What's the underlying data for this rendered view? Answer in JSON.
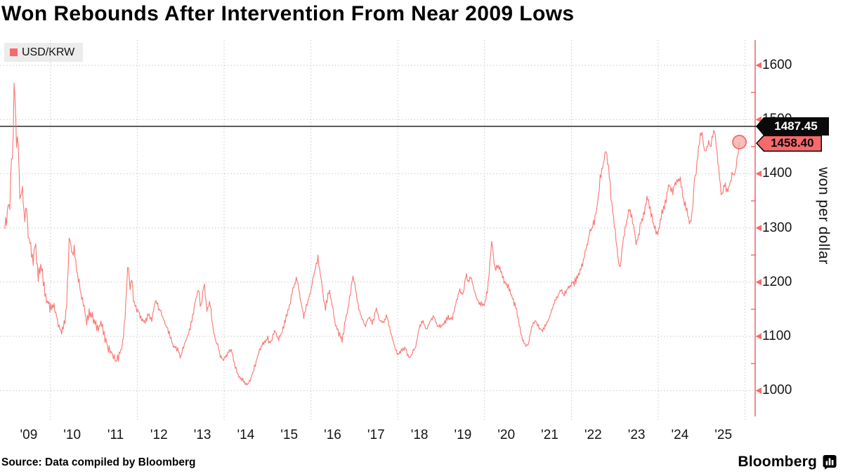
{
  "title": "Won Rebounds After Intervention From Near 2009 Lows",
  "legend": {
    "label": "USD/KRW",
    "swatch": "legend-swatch-red"
  },
  "source": "Source: Data compiled by Bloomberg",
  "branding": {
    "wordmark": "Bloomberg",
    "icon": "bloomberg-bars-icon"
  },
  "axis": {
    "y_label": "won per dollar",
    "y_ticks": [
      1000,
      1100,
      1200,
      1300,
      1400,
      1500,
      1600
    ],
    "y_minor_ticks": [
      1050,
      1150,
      1250,
      1350,
      1450,
      1550
    ],
    "x_labels": [
      "'09",
      "'10",
      "'11",
      "'12",
      "'13",
      "'14",
      "'15",
      "'16",
      "'17",
      "'18",
      "'19",
      "'20",
      "'21",
      "'22",
      "'23",
      "'24",
      "'25"
    ],
    "x_gridline_years": [
      2010,
      2012,
      2014,
      2016,
      2018,
      2020,
      2022,
      2024,
      2026
    ]
  },
  "annotations": {
    "ref_line_value": 1487.45,
    "ref_line_label": "1487.45",
    "last_value": 1458.4,
    "last_label": "1458.40"
  },
  "colors": {
    "accent": "#f8696b",
    "line": "#f87b76",
    "marker_fill": "#f5a8a4",
    "grid": "#c7c7c7",
    "ref_line": "#111111"
  },
  "chart_data": {
    "type": "line",
    "title": "Won Rebounds After Intervention From Near 2009 Lows",
    "xlabel": "",
    "ylabel": "won per dollar",
    "ylim": [
      955,
      1645
    ],
    "x_range": [
      2008.95,
      2026.1
    ],
    "grid": "dashed",
    "legend_position": "top-left",
    "ref_line": 1487.45,
    "last_point": {
      "x": 2025.87,
      "value": 1458.4
    },
    "series": [
      {
        "name": "USD/KRW",
        "points": [
          [
            2008.95,
            1308
          ],
          [
            2009.0,
            1315
          ],
          [
            2009.03,
            1355
          ],
          [
            2009.06,
            1322
          ],
          [
            2009.1,
            1440
          ],
          [
            2009.13,
            1415
          ],
          [
            2009.17,
            1593
          ],
          [
            2009.2,
            1490
          ],
          [
            2009.22,
            1448
          ],
          [
            2009.25,
            1472
          ],
          [
            2009.3,
            1348
          ],
          [
            2009.35,
            1374
          ],
          [
            2009.4,
            1318
          ],
          [
            2009.45,
            1342
          ],
          [
            2009.5,
            1279
          ],
          [
            2009.55,
            1262
          ],
          [
            2009.6,
            1240
          ],
          [
            2009.65,
            1268
          ],
          [
            2009.72,
            1205
          ],
          [
            2009.78,
            1233
          ],
          [
            2009.85,
            1195
          ],
          [
            2009.92,
            1168
          ],
          [
            2010.0,
            1150
          ],
          [
            2010.08,
            1162
          ],
          [
            2010.15,
            1135
          ],
          [
            2010.25,
            1108
          ],
          [
            2010.33,
            1128
          ],
          [
            2010.38,
            1170
          ],
          [
            2010.44,
            1293
          ],
          [
            2010.5,
            1248
          ],
          [
            2010.55,
            1268
          ],
          [
            2010.6,
            1225
          ],
          [
            2010.67,
            1192
          ],
          [
            2010.75,
            1160
          ],
          [
            2010.83,
            1130
          ],
          [
            2010.92,
            1146
          ],
          [
            2011.0,
            1128
          ],
          [
            2011.08,
            1115
          ],
          [
            2011.17,
            1126
          ],
          [
            2011.25,
            1096
          ],
          [
            2011.33,
            1080
          ],
          [
            2011.42,
            1068
          ],
          [
            2011.5,
            1054
          ],
          [
            2011.58,
            1063
          ],
          [
            2011.67,
            1088
          ],
          [
            2011.73,
            1150
          ],
          [
            2011.79,
            1238
          ],
          [
            2011.83,
            1182
          ],
          [
            2011.87,
            1215
          ],
          [
            2011.92,
            1158
          ],
          [
            2012.0,
            1150
          ],
          [
            2012.08,
            1136
          ],
          [
            2012.17,
            1124
          ],
          [
            2012.25,
            1140
          ],
          [
            2012.33,
            1130
          ],
          [
            2012.42,
            1166
          ],
          [
            2012.5,
            1152
          ],
          [
            2012.58,
            1138
          ],
          [
            2012.67,
            1118
          ],
          [
            2012.75,
            1103
          ],
          [
            2012.83,
            1082
          ],
          [
            2012.92,
            1076
          ],
          [
            2013.0,
            1062
          ],
          [
            2013.08,
            1084
          ],
          [
            2013.17,
            1102
          ],
          [
            2013.25,
            1126
          ],
          [
            2013.33,
            1162
          ],
          [
            2013.42,
            1188
          ],
          [
            2013.46,
            1150
          ],
          [
            2013.54,
            1200
          ],
          [
            2013.6,
            1148
          ],
          [
            2013.67,
            1165
          ],
          [
            2013.75,
            1110
          ],
          [
            2013.83,
            1086
          ],
          [
            2013.92,
            1064
          ],
          [
            2014.0,
            1056
          ],
          [
            2014.08,
            1070
          ],
          [
            2014.17,
            1076
          ],
          [
            2014.25,
            1045
          ],
          [
            2014.33,
            1028
          ],
          [
            2014.42,
            1020
          ],
          [
            2014.54,
            1010
          ],
          [
            2014.6,
            1018
          ],
          [
            2014.67,
            1036
          ],
          [
            2014.75,
            1056
          ],
          [
            2014.83,
            1078
          ],
          [
            2014.92,
            1088
          ],
          [
            2015.0,
            1096
          ],
          [
            2015.08,
            1086
          ],
          [
            2015.17,
            1112
          ],
          [
            2015.25,
            1092
          ],
          [
            2015.33,
            1106
          ],
          [
            2015.42,
            1132
          ],
          [
            2015.5,
            1152
          ],
          [
            2015.58,
            1186
          ],
          [
            2015.67,
            1208
          ],
          [
            2015.72,
            1188
          ],
          [
            2015.76,
            1168
          ],
          [
            2015.83,
            1136
          ],
          [
            2015.92,
            1162
          ],
          [
            2016.0,
            1186
          ],
          [
            2016.08,
            1216
          ],
          [
            2016.16,
            1245
          ],
          [
            2016.25,
            1196
          ],
          [
            2016.33,
            1152
          ],
          [
            2016.42,
            1183
          ],
          [
            2016.5,
            1158
          ],
          [
            2016.56,
            1122
          ],
          [
            2016.63,
            1108
          ],
          [
            2016.72,
            1092
          ],
          [
            2016.8,
            1132
          ],
          [
            2016.88,
            1162
          ],
          [
            2016.96,
            1208
          ],
          [
            2017.0,
            1202
          ],
          [
            2017.08,
            1160
          ],
          [
            2017.17,
            1132
          ],
          [
            2017.25,
            1120
          ],
          [
            2017.33,
            1136
          ],
          [
            2017.42,
            1124
          ],
          [
            2017.5,
            1150
          ],
          [
            2017.58,
            1130
          ],
          [
            2017.67,
            1124
          ],
          [
            2017.75,
            1140
          ],
          [
            2017.83,
            1108
          ],
          [
            2017.92,
            1084
          ],
          [
            2018.0,
            1064
          ],
          [
            2018.08,
            1073
          ],
          [
            2018.17,
            1079
          ],
          [
            2018.27,
            1058
          ],
          [
            2018.33,
            1068
          ],
          [
            2018.42,
            1082
          ],
          [
            2018.5,
            1118
          ],
          [
            2018.58,
            1128
          ],
          [
            2018.67,
            1112
          ],
          [
            2018.75,
            1128
          ],
          [
            2018.83,
            1136
          ],
          [
            2018.92,
            1120
          ],
          [
            2019.0,
            1118
          ],
          [
            2019.08,
            1126
          ],
          [
            2019.17,
            1136
          ],
          [
            2019.25,
            1130
          ],
          [
            2019.33,
            1160
          ],
          [
            2019.42,
            1186
          ],
          [
            2019.5,
            1176
          ],
          [
            2019.58,
            1215
          ],
          [
            2019.63,
            1198
          ],
          [
            2019.67,
            1211
          ],
          [
            2019.75,
            1190
          ],
          [
            2019.83,
            1166
          ],
          [
            2019.92,
            1160
          ],
          [
            2020.0,
            1158
          ],
          [
            2020.08,
            1192
          ],
          [
            2020.17,
            1284
          ],
          [
            2020.21,
            1238
          ],
          [
            2020.25,
            1222
          ],
          [
            2020.33,
            1230
          ],
          [
            2020.42,
            1206
          ],
          [
            2020.5,
            1196
          ],
          [
            2020.58,
            1186
          ],
          [
            2020.67,
            1164
          ],
          [
            2020.75,
            1144
          ],
          [
            2020.83,
            1108
          ],
          [
            2020.92,
            1088
          ],
          [
            2021.0,
            1082
          ],
          [
            2021.08,
            1114
          ],
          [
            2021.17,
            1130
          ],
          [
            2021.25,
            1117
          ],
          [
            2021.33,
            1110
          ],
          [
            2021.42,
            1122
          ],
          [
            2021.5,
            1136
          ],
          [
            2021.58,
            1156
          ],
          [
            2021.67,
            1172
          ],
          [
            2021.75,
            1186
          ],
          [
            2021.83,
            1177
          ],
          [
            2021.92,
            1188
          ],
          [
            2022.0,
            1196
          ],
          [
            2022.08,
            1200
          ],
          [
            2022.17,
            1216
          ],
          [
            2022.25,
            1232
          ],
          [
            2022.33,
            1256
          ],
          [
            2022.42,
            1290
          ],
          [
            2022.5,
            1304
          ],
          [
            2022.58,
            1330
          ],
          [
            2022.67,
            1396
          ],
          [
            2022.75,
            1424
          ],
          [
            2022.8,
            1442
          ],
          [
            2022.84,
            1418
          ],
          [
            2022.88,
            1394
          ],
          [
            2022.92,
            1350
          ],
          [
            2023.0,
            1300
          ],
          [
            2023.08,
            1240
          ],
          [
            2023.12,
            1222
          ],
          [
            2023.17,
            1266
          ],
          [
            2023.25,
            1300
          ],
          [
            2023.33,
            1338
          ],
          [
            2023.42,
            1310
          ],
          [
            2023.5,
            1270
          ],
          [
            2023.58,
            1300
          ],
          [
            2023.67,
            1330
          ],
          [
            2023.75,
            1354
          ],
          [
            2023.83,
            1330
          ],
          [
            2023.92,
            1300
          ],
          [
            2024.0,
            1290
          ],
          [
            2024.08,
            1330
          ],
          [
            2024.17,
            1346
          ],
          [
            2024.25,
            1380
          ],
          [
            2024.33,
            1368
          ],
          [
            2024.42,
            1386
          ],
          [
            2024.5,
            1390
          ],
          [
            2024.58,
            1354
          ],
          [
            2024.67,
            1330
          ],
          [
            2024.72,
            1306
          ],
          [
            2024.79,
            1332
          ],
          [
            2024.83,
            1390
          ],
          [
            2024.88,
            1406
          ],
          [
            2024.92,
            1440
          ],
          [
            2024.97,
            1472
          ],
          [
            2025.0,
            1482
          ],
          [
            2025.04,
            1454
          ],
          [
            2025.08,
            1438
          ],
          [
            2025.13,
            1452
          ],
          [
            2025.17,
            1462
          ],
          [
            2025.21,
            1446
          ],
          [
            2025.25,
            1468
          ],
          [
            2025.29,
            1486
          ],
          [
            2025.33,
            1454
          ],
          [
            2025.38,
            1420
          ],
          [
            2025.42,
            1390
          ],
          [
            2025.46,
            1356
          ],
          [
            2025.5,
            1372
          ],
          [
            2025.54,
            1384
          ],
          [
            2025.58,
            1364
          ],
          [
            2025.63,
            1378
          ],
          [
            2025.67,
            1390
          ],
          [
            2025.71,
            1402
          ],
          [
            2025.75,
            1394
          ],
          [
            2025.79,
            1412
          ],
          [
            2025.83,
            1434
          ],
          [
            2025.87,
            1458.4
          ]
        ]
      }
    ]
  }
}
